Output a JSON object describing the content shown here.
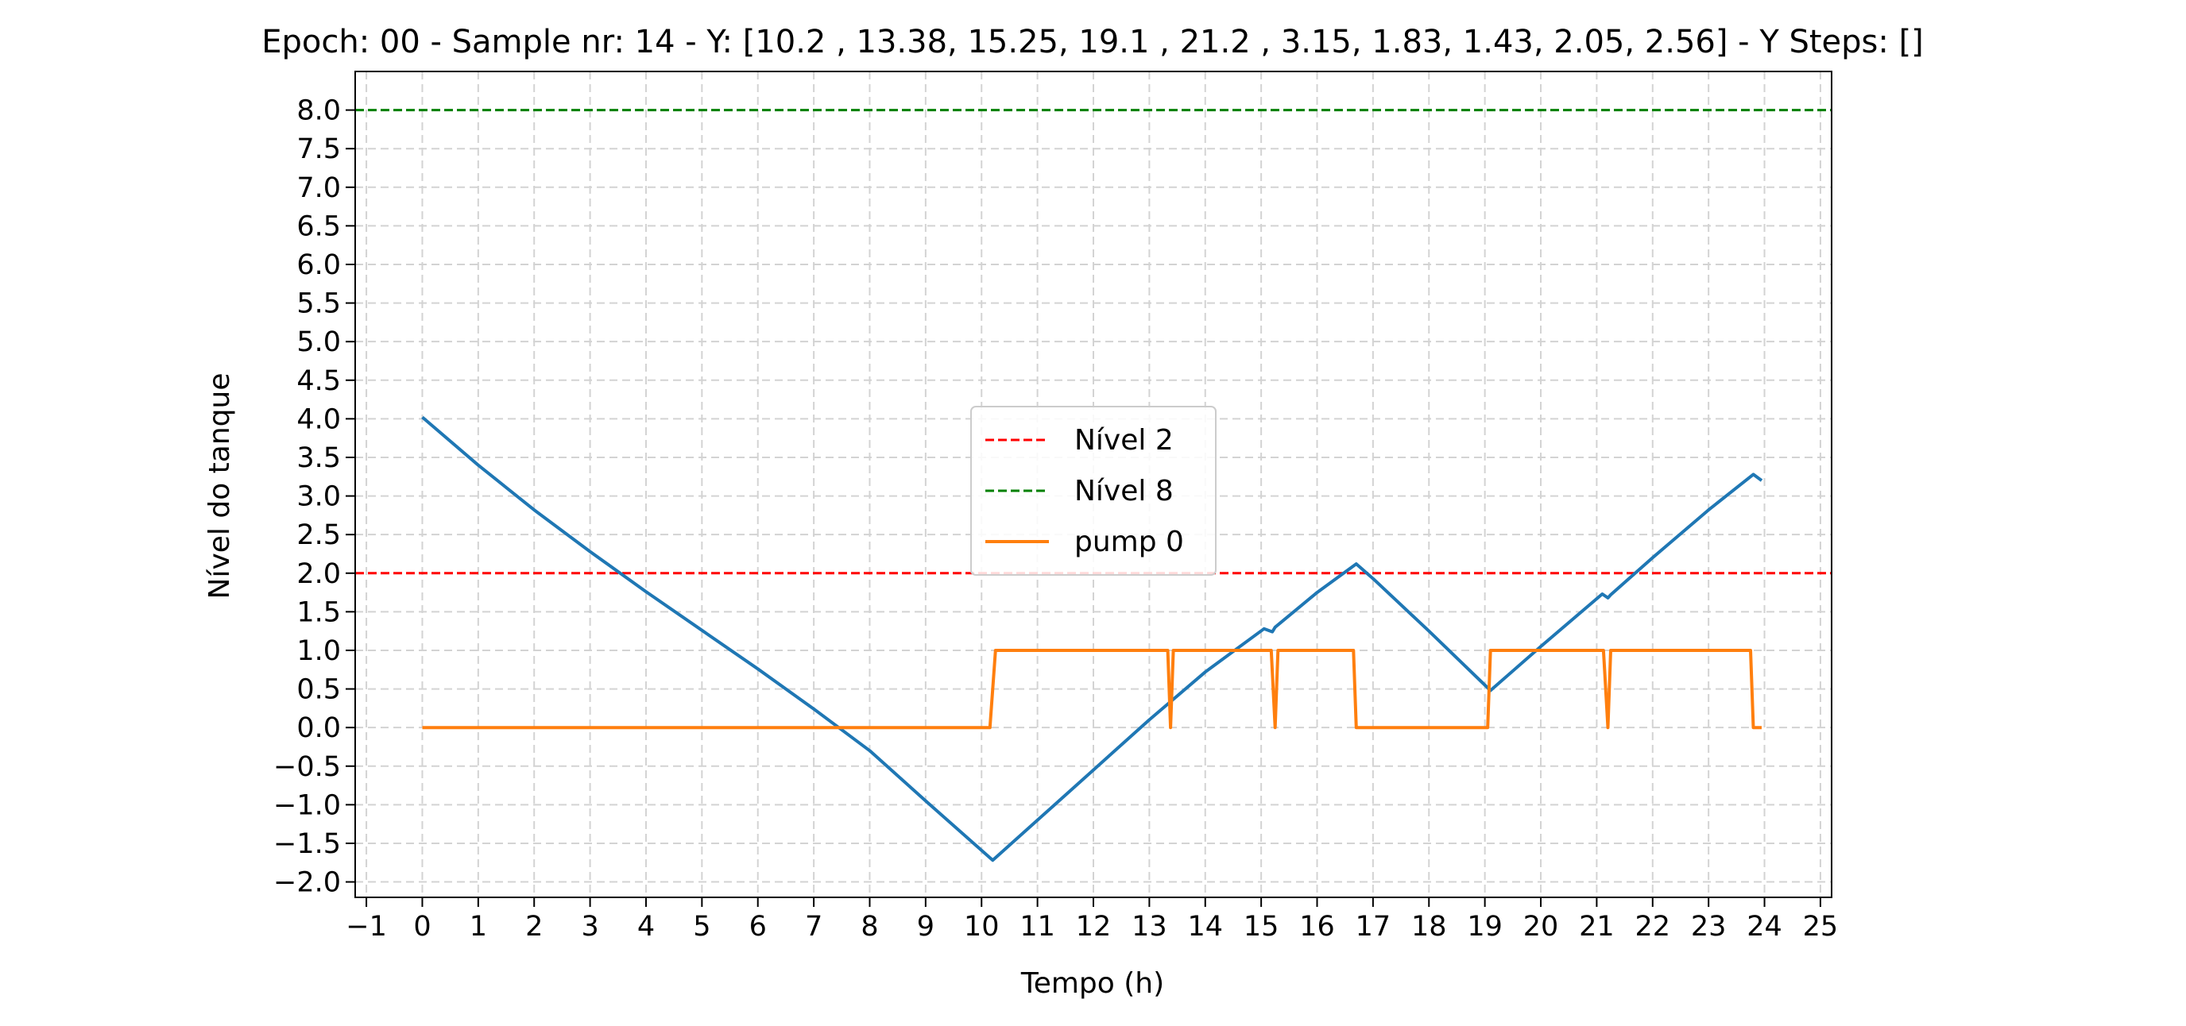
{
  "chart_data": {
    "type": "line",
    "title": "Epoch: 00 - Sample nr: 14 - Y: [10.2 , 13.38, 15.25, 19.1 , 21.2 ,  3.15,  1.83,  1.43,  2.05,  2.56] - Y Steps: []",
    "xlabel": "Tempo (h)",
    "ylabel": "Nível do tanque",
    "xlim": [
      -1.2,
      25.2
    ],
    "ylim": [
      -2.2,
      8.5
    ],
    "xticks": [
      -1,
      0,
      1,
      2,
      3,
      4,
      5,
      6,
      7,
      8,
      9,
      10,
      11,
      12,
      13,
      14,
      15,
      16,
      17,
      18,
      19,
      20,
      21,
      22,
      23,
      24,
      25
    ],
    "yticks": [
      -2.0,
      -1.5,
      -1.0,
      -0.5,
      0.0,
      0.5,
      1.0,
      1.5,
      2.0,
      2.5,
      3.0,
      3.5,
      4.0,
      4.5,
      5.0,
      5.5,
      6.0,
      6.5,
      7.0,
      7.5,
      8.0
    ],
    "grid": true,
    "legend_position": "center",
    "hlines": [
      {
        "name": "Nível 2",
        "y": 2,
        "color": "#ff0000",
        "style": "dashed"
      },
      {
        "name": "Nível 8",
        "y": 8,
        "color": "#008000",
        "style": "dashed"
      }
    ],
    "series": [
      {
        "name": "",
        "color": "#1f77b4",
        "x": [
          0,
          1,
          2,
          3,
          4,
          5,
          6,
          7,
          8,
          9,
          10.2,
          11,
          12,
          13,
          14,
          15.05,
          15.2,
          15.25,
          16,
          16.7,
          17,
          18,
          19.1,
          20,
          21.1,
          21.2,
          21.25,
          22,
          23,
          23.8,
          23.95
        ],
        "y": [
          4.02,
          3.4,
          2.82,
          2.28,
          1.76,
          1.26,
          0.76,
          0.24,
          -0.3,
          -0.95,
          -1.72,
          -1.2,
          -0.55,
          0.1,
          0.72,
          1.28,
          1.24,
          1.3,
          1.75,
          2.12,
          1.93,
          1.25,
          0.48,
          1.05,
          1.73,
          1.68,
          1.72,
          2.2,
          2.82,
          3.28,
          3.2
        ]
      },
      {
        "name": "pump 0",
        "color": "#ff7f0e",
        "x": [
          0,
          10.15,
          10.25,
          13.33,
          13.38,
          13.43,
          15.18,
          15.25,
          15.3,
          16.65,
          16.7,
          19.05,
          19.1,
          21.12,
          21.2,
          21.25,
          23.75,
          23.8,
          23.95
        ],
        "y": [
          0,
          0,
          1,
          1,
          0,
          1,
          1,
          0,
          1,
          1,
          0,
          0,
          1,
          1,
          0,
          1,
          1,
          0,
          0
        ]
      }
    ]
  }
}
